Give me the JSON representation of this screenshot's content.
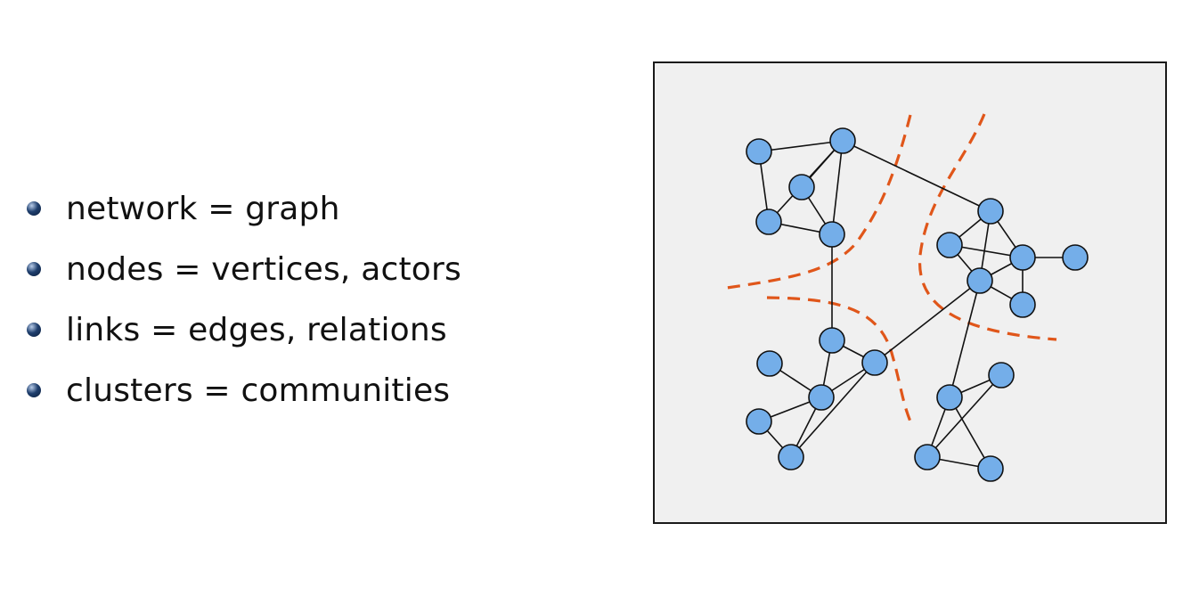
{
  "bullets": [
    {
      "text": "network = graph"
    },
    {
      "text": "nodes = vertices, actors"
    },
    {
      "text": "links = edges, relations"
    },
    {
      "text": "clusters = communities"
    }
  ],
  "colors": {
    "bullet": "#1f3f6e",
    "panel_background": "#f0f0f0",
    "node_fill": "#74aee9",
    "node_stroke": "#111111",
    "edge": "#111111",
    "cluster_boundary": "#e0561a"
  },
  "diagram": {
    "element": "network-graph",
    "node_count": 22,
    "edge_count": 29,
    "cluster_boundary_count": 3
  }
}
